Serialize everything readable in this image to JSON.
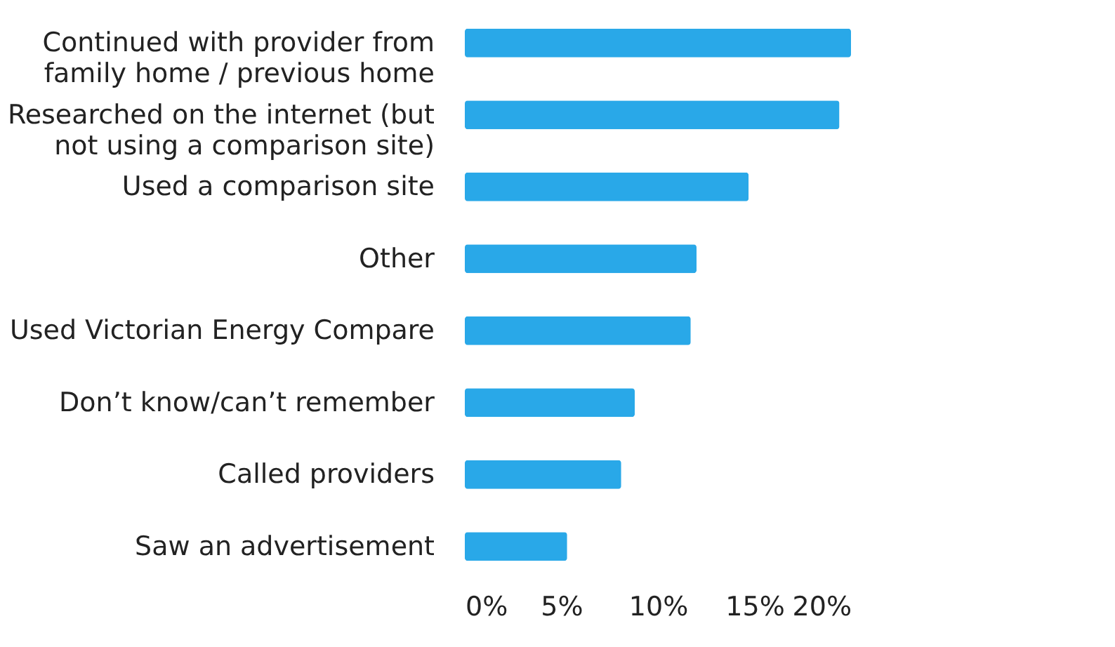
{
  "chart_data": {
    "type": "bar",
    "orientation": "horizontal",
    "categories": [
      "Continued with provider from family home / previous home",
      "Researched on the internet (but not using a comparison site)",
      "Used a comparison site",
      "Other",
      "Used Victorian Energy Compare",
      "Don’t know/can’t remember",
      "Called providers",
      "Saw an advertisement"
    ],
    "values": [
      20.0,
      19.4,
      14.7,
      12.0,
      11.7,
      8.8,
      8.1,
      5.3
    ],
    "color": "#29a8e8",
    "xlim": [
      0,
      20
    ],
    "xticks": [
      {
        "value": 0,
        "label": "0%"
      },
      {
        "value": 5,
        "label": "5%"
      },
      {
        "value": 10,
        "label": "10%"
      },
      {
        "value": 15,
        "label": "15%"
      },
      {
        "value": 20,
        "label": "20%"
      }
    ],
    "grid": false
  }
}
